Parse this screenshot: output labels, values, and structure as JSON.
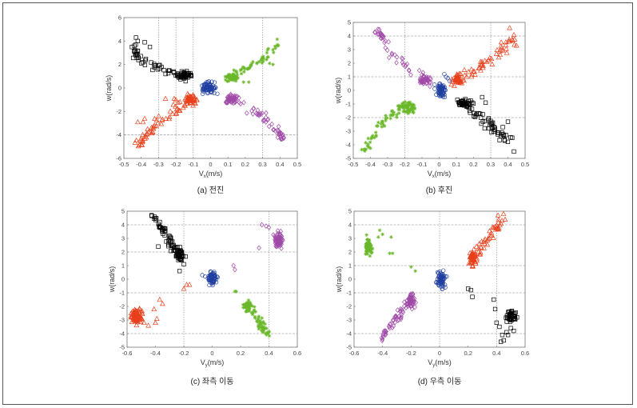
{
  "chart_data": [
    {
      "id": "a",
      "type": "scatter",
      "caption": "(a) 전진",
      "xlabel": "V",
      "xlabel_sub": "x",
      "xlabel_unit": "(m/s)",
      "ylabel": "w(rad/s)",
      "xlim": [
        -0.5,
        0.5
      ],
      "ylim": [
        -6,
        6
      ],
      "xticks": [
        -0.5,
        -0.4,
        -0.3,
        -0.2,
        -0.1,
        0,
        0.1,
        0.2,
        0.3,
        0.4,
        0.5
      ],
      "yticks": [
        -6,
        -4,
        -2,
        0,
        2,
        4,
        6
      ],
      "grid_x": [
        -0.3,
        -0.2,
        -0.1,
        0.3
      ],
      "grid_y": [
        -4
      ],
      "series": [
        {
          "name": "black",
          "marker": "square",
          "color": "#000000",
          "path": [
            [
              -0.44,
              3.3
            ],
            [
              -0.42,
              2.5
            ],
            [
              -0.3,
              1.8
            ],
            [
              -0.12,
              0.9
            ]
          ],
          "spread": [
            0.01,
            0.18
          ],
          "n": 60,
          "dense": [
            -0.15,
            1.0
          ],
          "dense_spread": [
            0.02,
            0.2
          ],
          "dense_n": 30,
          "outliers": [
            [
              -0.43,
              4.3
            ],
            [
              -0.42,
              4.0
            ],
            [
              -0.38,
              3.9
            ],
            [
              -0.35,
              3.5
            ],
            [
              -0.44,
              3.6
            ]
          ]
        },
        {
          "name": "red",
          "marker": "triangle",
          "color": "#e8401c",
          "path": [
            [
              -0.42,
              -4.8
            ],
            [
              -0.3,
              -2.8
            ],
            [
              -0.1,
              -1.0
            ]
          ],
          "spread": [
            0.01,
            0.2
          ],
          "n": 60,
          "dense": [
            -0.11,
            -1.0
          ],
          "dense_spread": [
            0.015,
            0.2
          ],
          "dense_n": 40,
          "outliers": [
            [
              -0.26,
              -0.9
            ],
            [
              -0.21,
              -0.9
            ],
            [
              -0.42,
              -2.9
            ],
            [
              -0.38,
              -2.6
            ],
            [
              -0.39,
              -2.9
            ],
            [
              -0.2,
              -1.0
            ]
          ]
        },
        {
          "name": "green",
          "marker": "star",
          "color": "#6ab82a",
          "path": [
            [
              0.1,
              0.8
            ],
            [
              0.3,
              2.5
            ],
            [
              0.41,
              4.3
            ]
          ],
          "spread": [
            0.01,
            0.2
          ],
          "n": 50,
          "dense": [
            0.12,
            0.9
          ],
          "dense_spread": [
            0.02,
            0.15
          ],
          "dense_n": 40,
          "outliers": [
            [
              0.36,
              2.0
            ],
            [
              0.34,
              2.1
            ],
            [
              0.19,
              0.5
            ],
            [
              0.22,
              0.5
            ]
          ]
        },
        {
          "name": "purple",
          "marker": "diamond",
          "color": "#a04aa8",
          "path": [
            [
              0.1,
              -0.8
            ],
            [
              0.3,
              -2.5
            ],
            [
              0.42,
              -4.3
            ]
          ],
          "spread": [
            0.01,
            0.2
          ],
          "n": 55,
          "dense": [
            0.12,
            -0.9
          ],
          "dense_spread": [
            0.02,
            0.2
          ],
          "dense_n": 40,
          "outliers": []
        },
        {
          "name": "blue",
          "marker": "circle",
          "color": "#1f3fa0",
          "path": [],
          "spread": [
            0,
            0
          ],
          "n": 0,
          "dense": [
            -0.01,
            0.0
          ],
          "dense_spread": [
            0.02,
            0.25
          ],
          "dense_n": 70,
          "outliers": [
            [
              -0.05,
              0.2
            ],
            [
              -0.04,
              -0.3
            ]
          ]
        }
      ]
    },
    {
      "id": "b",
      "type": "scatter",
      "caption": "(b) 후진",
      "xlabel": "V",
      "xlabel_sub": "x",
      "xlabel_unit": "(m/s)",
      "ylabel": "w(rad/s)",
      "xlim": [
        -0.5,
        0.5
      ],
      "ylim": [
        -5,
        5
      ],
      "xticks": [
        -0.5,
        -0.4,
        -0.3,
        -0.2,
        -0.1,
        0,
        0.1,
        0.2,
        0.3,
        0.4,
        0.5
      ],
      "yticks": [
        -5,
        -4,
        -3,
        -2,
        -1,
        0,
        1,
        2,
        3,
        4,
        5
      ],
      "grid_x": [
        -0.2,
        0.3
      ],
      "grid_y": [
        4,
        1,
        -2
      ],
      "series": [
        {
          "name": "purple",
          "marker": "diamond",
          "color": "#a04aa8",
          "path": [
            [
              -0.37,
              4.6
            ],
            [
              -0.28,
              2.8
            ],
            [
              -0.07,
              0.7
            ]
          ],
          "spread": [
            0.01,
            0.2
          ],
          "n": 45,
          "dense": [
            -0.08,
            0.8
          ],
          "dense_spread": [
            0.02,
            0.15
          ],
          "dense_n": 35,
          "outliers": []
        },
        {
          "name": "green",
          "marker": "star",
          "color": "#6ab82a",
          "path": [
            [
              -0.45,
              -4.5
            ],
            [
              -0.3,
              -2.0
            ],
            [
              -0.15,
              -0.9
            ]
          ],
          "spread": [
            0.012,
            0.22
          ],
          "n": 60,
          "dense": [
            -0.18,
            -1.3
          ],
          "dense_spread": [
            0.02,
            0.2
          ],
          "dense_n": 40,
          "outliers": []
        },
        {
          "name": "red",
          "marker": "triangle",
          "color": "#e8401c",
          "path": [
            [
              0.1,
              0.7
            ],
            [
              0.3,
              2.2
            ],
            [
              0.45,
              4.0
            ]
          ],
          "spread": [
            0.01,
            0.25
          ],
          "n": 55,
          "dense": [
            0.11,
            0.8
          ],
          "dense_spread": [
            0.015,
            0.15
          ],
          "dense_n": 40,
          "outliers": [
            [
              0.41,
              4.6
            ],
            [
              0.45,
              3.3
            ]
          ]
        },
        {
          "name": "black",
          "marker": "square",
          "color": "#000000",
          "path": [
            [
              0.14,
              -0.9
            ],
            [
              0.3,
              -2.5
            ],
            [
              0.45,
              -4.4
            ]
          ],
          "spread": [
            0.01,
            0.2
          ],
          "n": 55,
          "dense": [
            0.15,
            -0.9
          ],
          "dense_spread": [
            0.02,
            0.12
          ],
          "dense_n": 35,
          "outliers": [
            [
              0.25,
              -0.5
            ],
            [
              0.27,
              -0.9
            ],
            [
              0.4,
              -2.3
            ],
            [
              0.37,
              -2.7
            ]
          ]
        },
        {
          "name": "blue",
          "marker": "circle",
          "color": "#1f3fa0",
          "path": [],
          "spread": [
            0,
            0
          ],
          "n": 0,
          "dense": [
            0.01,
            0.0
          ],
          "dense_spread": [
            0.015,
            0.25
          ],
          "dense_n": 60,
          "outliers": [
            [
              0.03,
              1.2
            ],
            [
              0.05,
              0.9
            ],
            [
              0.06,
              0.7
            ],
            [
              0.04,
              1.0
            ]
          ]
        }
      ]
    },
    {
      "id": "c",
      "type": "scatter",
      "caption": "(c) 좌측 이동",
      "xlabel": "V",
      "xlabel_sub": "y",
      "xlabel_unit": "(m/s)",
      "ylabel": "w(rad/s)",
      "xlim": [
        -0.6,
        0.6
      ],
      "ylim": [
        -5,
        5
      ],
      "xticks": [
        -0.6,
        -0.4,
        -0.2,
        0,
        0.2,
        0.4,
        0.6
      ],
      "yticks": [
        -5,
        -4,
        -3,
        -2,
        -1,
        0,
        1,
        2,
        3,
        4,
        5
      ],
      "grid_x": [
        -0.2,
        0.4
      ],
      "grid_y": [
        4,
        2,
        -1,
        -4
      ],
      "series": [
        {
          "name": "black",
          "marker": "square",
          "color": "#000000",
          "path": [
            [
              -0.42,
              4.6
            ],
            [
              -0.22,
              1.6
            ]
          ],
          "spread": [
            0.01,
            0.18
          ],
          "n": 60,
          "dense": [
            -0.23,
            1.8
          ],
          "dense_spread": [
            0.015,
            0.25
          ],
          "dense_n": 40,
          "outliers": [
            [
              -0.38,
              2.4
            ],
            [
              -0.2,
              1.1
            ],
            [
              -0.23,
              0.6
            ]
          ]
        },
        {
          "name": "red",
          "marker": "triangle",
          "color": "#e8401c",
          "path": [],
          "spread": [
            0,
            0
          ],
          "n": 0,
          "dense": [
            -0.53,
            -2.7
          ],
          "dense_spread": [
            0.02,
            0.25
          ],
          "dense_n": 80,
          "outliers": [
            [
              -0.2,
              -0.7
            ],
            [
              -0.18,
              -0.4
            ],
            [
              -0.16,
              -0.4
            ],
            [
              -0.37,
              -1.5
            ],
            [
              -0.35,
              -1.8
            ],
            [
              -0.41,
              -2.2
            ],
            [
              -0.39,
              -2.9
            ],
            [
              -0.4,
              -3.2
            ],
            [
              -0.45,
              -3.4
            ],
            [
              -0.48,
              -3.2
            ]
          ]
        },
        {
          "name": "green",
          "marker": "star",
          "color": "#6ab82a",
          "path": [
            [
              0.25,
              -1.8
            ],
            [
              0.4,
              -4.2
            ]
          ],
          "spread": [
            0.012,
            0.2
          ],
          "n": 55,
          "dense": [
            0.25,
            -2.0
          ],
          "dense_spread": [
            0.015,
            0.2
          ],
          "dense_n": 40,
          "outliers": [
            [
              0.16,
              -0.9
            ],
            [
              0.17,
              -0.9
            ]
          ]
        },
        {
          "name": "purple",
          "marker": "diamond",
          "color": "#a04aa8",
          "path": [],
          "spread": [
            0,
            0
          ],
          "n": 0,
          "dense": [
            0.47,
            2.9
          ],
          "dense_spread": [
            0.015,
            0.35
          ],
          "dense_n": 60,
          "outliers": [
            [
              0.38,
              3.9
            ],
            [
              0.4,
              3.8
            ],
            [
              0.35,
              4.0
            ],
            [
              0.33,
              2.3
            ],
            [
              0.15,
              1.0
            ],
            [
              0.16,
              0.7
            ]
          ]
        },
        {
          "name": "blue",
          "marker": "circle",
          "color": "#1f3fa0",
          "path": [],
          "spread": [
            0,
            0
          ],
          "n": 0,
          "dense": [
            0.0,
            0.1
          ],
          "dense_spread": [
            0.015,
            0.22
          ],
          "dense_n": 60,
          "outliers": [
            [
              -0.07,
              0.3
            ],
            [
              -0.05,
              0.2
            ]
          ]
        }
      ]
    },
    {
      "id": "d",
      "type": "scatter",
      "caption": "(d) 우측 이동",
      "xlabel": "V",
      "xlabel_sub": "y",
      "xlabel_unit": "(m/s)",
      "ylabel": "w(rad/s)",
      "xlim": [
        -0.6,
        0.6
      ],
      "ylim": [
        -5,
        5
      ],
      "xticks": [
        -0.6,
        -0.4,
        -0.2,
        0,
        0.2,
        0.4,
        0.6
      ],
      "yticks": [
        -5,
        -4,
        -3,
        -2,
        -1,
        0,
        1,
        2,
        3,
        4,
        5
      ],
      "grid_x": [
        0,
        0.4
      ],
      "grid_y": [
        4,
        1,
        -1,
        -4
      ],
      "series": [
        {
          "name": "green",
          "marker": "star",
          "color": "#6ab82a",
          "path": [],
          "spread": [
            0,
            0
          ],
          "n": 0,
          "dense": [
            -0.5,
            2.4
          ],
          "dense_spread": [
            0.012,
            0.3
          ],
          "dense_n": 60,
          "outliers": [
            [
              -0.42,
              3.6
            ],
            [
              -0.4,
              3.3
            ],
            [
              -0.43,
              3.1
            ],
            [
              -0.34,
              3.1
            ],
            [
              -0.35,
              1.9
            ],
            [
              -0.33,
              1.9
            ],
            [
              -0.2,
              0.9
            ],
            [
              -0.17,
              0.6
            ]
          ]
        },
        {
          "name": "purple",
          "marker": "diamond",
          "color": "#a04aa8",
          "path": [
            [
              -0.4,
              -4.4
            ],
            [
              -0.18,
              -1.0
            ]
          ],
          "spread": [
            0.012,
            0.22
          ],
          "n": 55,
          "dense": [
            -0.2,
            -1.6
          ],
          "dense_spread": [
            0.015,
            0.25
          ],
          "dense_n": 45,
          "outliers": []
        },
        {
          "name": "red",
          "marker": "triangle",
          "color": "#e8401c",
          "path": [
            [
              0.22,
              1.4
            ],
            [
              0.45,
              4.4
            ]
          ],
          "spread": [
            0.012,
            0.2
          ],
          "n": 55,
          "dense": [
            0.23,
            1.5
          ],
          "dense_spread": [
            0.012,
            0.25
          ],
          "dense_n": 45,
          "outliers": [
            [
              0.41,
              4.7
            ],
            [
              0.46,
              4.4
            ]
          ]
        },
        {
          "name": "black",
          "marker": "square",
          "color": "#000000",
          "path": [],
          "spread": [
            0,
            0
          ],
          "n": 0,
          "dense": [
            0.5,
            -2.7
          ],
          "dense_spread": [
            0.015,
            0.2
          ],
          "dense_n": 50,
          "outliers": [
            [
              0.2,
              -0.7
            ],
            [
              0.22,
              -0.8
            ],
            [
              0.23,
              -1.3
            ],
            [
              0.38,
              -1.5
            ],
            [
              0.39,
              -2.2
            ],
            [
              0.4,
              -3.2
            ],
            [
              0.42,
              -3.5
            ],
            [
              0.44,
              -4.1
            ],
            [
              0.43,
              -4.6
            ],
            [
              0.45,
              -4.5
            ],
            [
              0.47,
              -3.9
            ],
            [
              0.5,
              -3.6
            ],
            [
              0.52,
              -3.8
            ],
            [
              0.48,
              -4.1
            ]
          ]
        },
        {
          "name": "blue",
          "marker": "circle",
          "color": "#1f3fa0",
          "path": [],
          "spread": [
            0,
            0
          ],
          "n": 0,
          "dense": [
            0.01,
            0.0
          ],
          "dense_spread": [
            0.015,
            0.3
          ],
          "dense_n": 60,
          "outliers": [
            [
              0.05,
              0.2
            ],
            [
              0.04,
              -0.6
            ],
            [
              0.02,
              -0.7
            ]
          ]
        }
      ]
    }
  ]
}
